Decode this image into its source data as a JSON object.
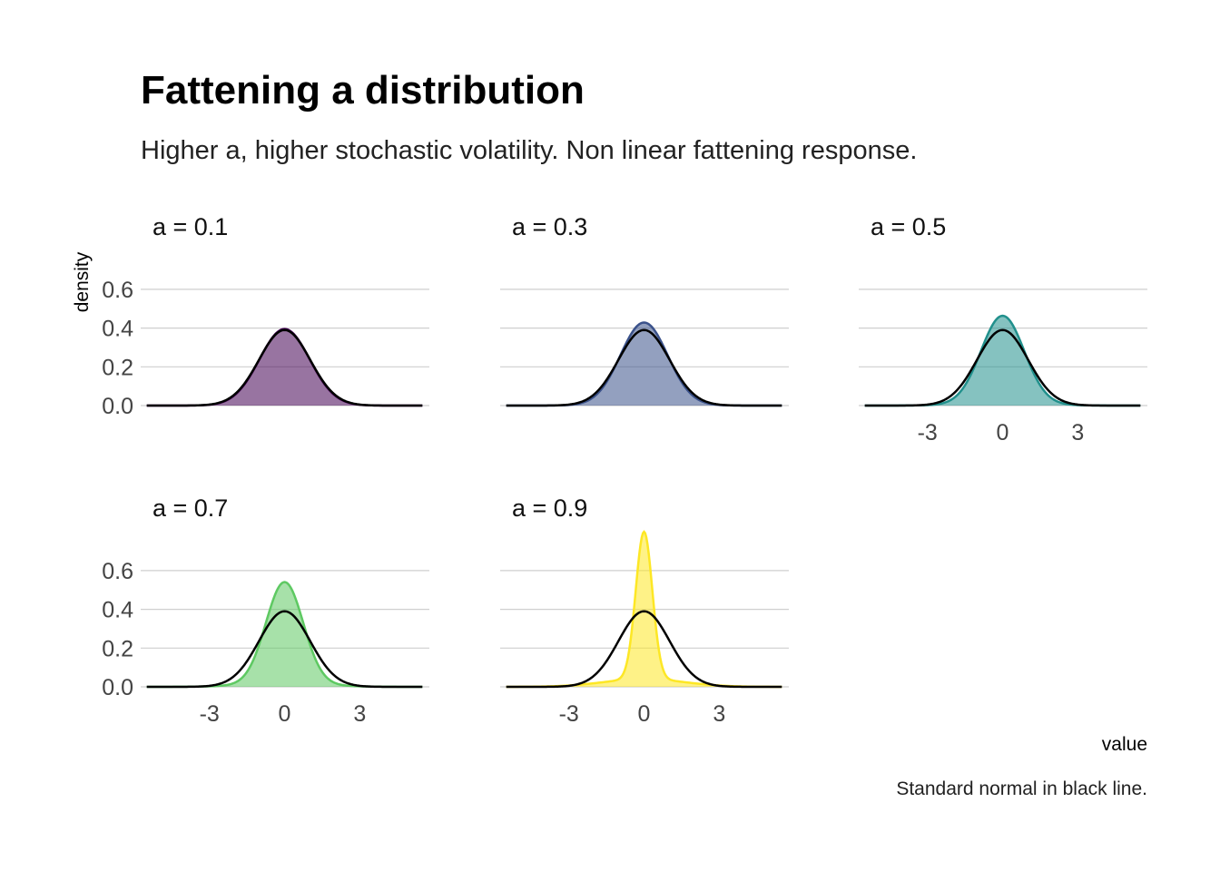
{
  "chart_data": {
    "type": "area",
    "title": "Fattening a distribution",
    "subtitle": "Higher a, higher stochastic volatility. Non linear fattening response.",
    "xlabel": "value",
    "ylabel": "density",
    "caption": "Standard normal in black line.",
    "xlim": [
      -5.5,
      5.5
    ],
    "ylim": [
      0,
      0.72
    ],
    "x_ticks": [
      -3,
      0,
      3
    ],
    "x_tick_labels": [
      "-3",
      "0",
      "3"
    ],
    "y_ticks": [
      0,
      0.2,
      0.4,
      0.6
    ],
    "y_tick_labels": [
      "0.0",
      "0.2",
      "0.4",
      "0.6"
    ],
    "grid": "horizontal",
    "reference_line": {
      "color": "#000000"
    },
    "panels": [
      {
        "label": "a = 0.1",
        "fill": "#440154",
        "peak": 0.395,
        "sd": 1.0,
        "show_y": true,
        "show_x": false
      },
      {
        "label": "a = 0.3",
        "fill": "#3b528b",
        "peak": 0.425,
        "sd": 0.94,
        "show_y": false,
        "show_x": false
      },
      {
        "label": "a = 0.5",
        "fill": "#21908c",
        "peak": 0.455,
        "sd": 0.86,
        "show_y": false,
        "show_x": true
      },
      {
        "label": "a = 0.7",
        "fill": "#5ec962",
        "peak": 0.525,
        "sd": 0.74,
        "show_y": true,
        "show_x": true
      },
      {
        "label": "a = 0.9",
        "fill": "#fde725",
        "peak": 0.76,
        "sd": 0.33,
        "show_y": false,
        "show_x": true
      }
    ]
  }
}
